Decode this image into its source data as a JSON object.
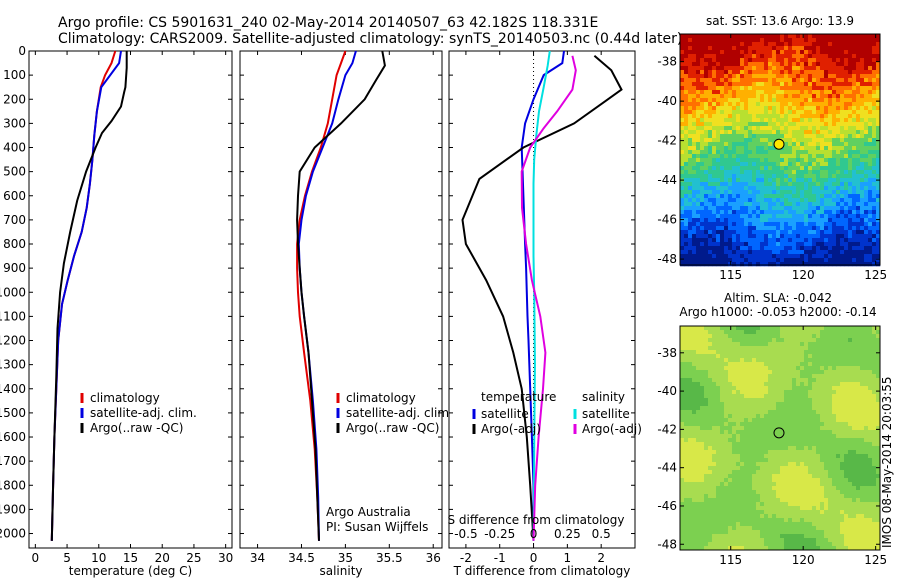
{
  "header": {
    "line1": "Argo profile: CS 5901631_240 02-May-2014 20140507_63 42.182S 118.331E",
    "line2": "Climatology: CARS2009. Satellite-adjusted climatology: synTS_20140503.nc (0.44d later)"
  },
  "colors": {
    "climatology": "#e00000",
    "satellite": "#0000e0",
    "argo": "#000000",
    "satellite_salinity": "#00e0e0",
    "argo_salinity_diff": "#e000e0"
  },
  "footer_note": {
    "line1": "Argo Australia",
    "line2": "PI: Susan Wijffels"
  },
  "timestamp": "IMOS 08-May-2014 20:03:55",
  "chart_data": [
    {
      "id": "temperature",
      "type": "line",
      "xlabel": "temperature (deg C)",
      "ylabel": "",
      "xlim": [
        -1,
        31
      ],
      "ylim": [
        2060,
        0
      ],
      "xticks": [
        0,
        5,
        10,
        15,
        20,
        25,
        30
      ],
      "xtick_labels": [
        "0",
        "5",
        "10",
        "15",
        "20",
        "25",
        "30"
      ],
      "yticks": [
        0,
        100,
        200,
        300,
        400,
        500,
        600,
        700,
        800,
        900,
        1000,
        1100,
        1200,
        1300,
        1400,
        1500,
        1600,
        1700,
        1800,
        1900,
        2000
      ],
      "ytick_labels": [
        "0",
        "100",
        "200",
        "300",
        "400",
        "500",
        "600",
        "700",
        "800",
        "900",
        "1000",
        "1100",
        "1200",
        "1300",
        "1400",
        "1500",
        "1600",
        "1700",
        "1800",
        "1900",
        "2000"
      ],
      "legend": [
        "climatology",
        "satellite-adj. clim.",
        "Argo(..raw -QC)"
      ],
      "legend_placement": "lower-center",
      "series": [
        {
          "name": "climatology",
          "color": "#e00000",
          "x": [
            12.6,
            12.0,
            11.0,
            10.3,
            9.7,
            9.3,
            9.0,
            8.6,
            8.1,
            7.3,
            6.1,
            5.1,
            4.2,
            3.6,
            3.3,
            3.0,
            2.8,
            2.6
          ],
          "y": [
            0,
            50,
            100,
            150,
            250,
            350,
            450,
            550,
            650,
            750,
            850,
            950,
            1050,
            1200,
            1400,
            1600,
            1800,
            2030
          ]
        },
        {
          "name": "satellite-adj. clim.",
          "color": "#0000e0",
          "x": [
            13.5,
            13.2,
            11.8,
            10.4,
            9.7,
            9.3,
            9.0,
            8.6,
            8.1,
            7.3,
            6.1,
            5.1,
            4.2,
            3.6,
            3.3,
            3.0,
            2.8,
            2.6
          ],
          "y": [
            0,
            50,
            100,
            150,
            250,
            350,
            450,
            550,
            650,
            750,
            850,
            950,
            1050,
            1200,
            1400,
            1600,
            1800,
            2030
          ]
        },
        {
          "name": "Argo(..raw -QC)",
          "color": "#000000",
          "x": [
            14.4,
            14.4,
            14.2,
            14.0,
            13.5,
            12.0,
            10.5,
            9.5,
            8.0,
            6.6,
            5.5,
            4.5,
            3.9,
            3.5,
            3.3,
            3.0,
            2.8,
            2.6
          ],
          "y": [
            0,
            70,
            150,
            170,
            230,
            290,
            340,
            400,
            500,
            620,
            750,
            880,
            1000,
            1150,
            1350,
            1600,
            1800,
            2030
          ]
        }
      ]
    },
    {
      "id": "salinity",
      "type": "line",
      "xlabel": "salinity",
      "xlim": [
        33.8,
        36.1
      ],
      "ylim": [
        2060,
        0
      ],
      "xticks": [
        34,
        34.5,
        35,
        35.5,
        36
      ],
      "xtick_labels": [
        "34",
        "34.5",
        "35",
        "35.5",
        "36"
      ],
      "legend": [
        "climatology",
        "satellite-adj. clim.",
        "Argo(..raw -QC)"
      ],
      "legend_placement": "lower-center",
      "series": [
        {
          "name": "climatology",
          "color": "#e00000",
          "x": [
            35.0,
            34.95,
            34.9,
            34.85,
            34.8,
            34.72,
            34.62,
            34.54,
            34.48,
            34.45,
            34.45,
            34.46,
            34.48,
            34.53,
            34.6,
            34.65,
            34.68,
            34.7
          ],
          "y": [
            0,
            50,
            100,
            200,
            300,
            400,
            500,
            600,
            700,
            800,
            900,
            1000,
            1100,
            1250,
            1450,
            1650,
            1850,
            2030
          ]
        },
        {
          "name": "satellite-adj. clim.",
          "color": "#0000e0",
          "x": [
            35.12,
            35.08,
            35.0,
            34.92,
            34.85,
            34.74,
            34.63,
            34.55,
            34.5,
            34.47,
            34.48,
            34.5,
            34.53,
            34.58,
            34.63,
            34.67,
            34.69,
            34.7
          ],
          "y": [
            0,
            50,
            100,
            200,
            300,
            400,
            500,
            600,
            700,
            800,
            900,
            1000,
            1100,
            1250,
            1450,
            1650,
            1850,
            2030
          ]
        },
        {
          "name": "Argo(..raw -QC)",
          "color": "#000000",
          "x": [
            35.42,
            35.45,
            35.35,
            35.22,
            34.95,
            34.65,
            34.48,
            34.46,
            34.45,
            34.46,
            34.48,
            34.5,
            34.53,
            34.58,
            34.62,
            34.66,
            34.68,
            34.7
          ],
          "y": [
            0,
            60,
            120,
            200,
            300,
            400,
            500,
            600,
            700,
            800,
            900,
            1000,
            1100,
            1250,
            1450,
            1650,
            1850,
            2030
          ]
        }
      ],
      "annotation": [
        "Argo Australia",
        "PI: Susan Wijffels"
      ]
    },
    {
      "id": "difference",
      "type": "line",
      "xlabel": "T difference from climatology",
      "top_label": "S difference from climatology",
      "xlim": [
        -2.5,
        3.0
      ],
      "ylim": [
        2060,
        0
      ],
      "xticks": [
        -2,
        -1,
        0,
        1,
        2
      ],
      "xtick_labels": [
        "-2",
        "-1",
        "0",
        "1",
        "2"
      ],
      "s_ticks": [
        -0.5,
        -0.25,
        0,
        0.25,
        0.5
      ],
      "s_tick_labels": [
        "-0.5",
        "-0.25",
        "0",
        "0.25",
        "0.5"
      ],
      "s_scale": 0.25,
      "legend_left_title": "temperature",
      "legend_right_title": "salinity",
      "legend_left": [
        "satellite",
        "Argo(-adj)"
      ],
      "legend_right": [
        "satellite",
        "Argo(-adj)"
      ],
      "series": [
        {
          "name": "temperature satellite",
          "color": "#0000e0",
          "x": [
            0.9,
            0.85,
            0.3,
            0.0,
            -0.25,
            -0.35,
            -0.3,
            -0.25,
            -0.22,
            -0.2,
            -0.18,
            -0.15,
            -0.1,
            -0.05,
            0,
            0
          ],
          "y": [
            0,
            50,
            100,
            200,
            300,
            400,
            600,
            800,
            900,
            1000,
            1100,
            1200,
            1400,
            1600,
            1800,
            2030
          ]
        },
        {
          "name": "temperature Argo(-adj)",
          "color": "#000000",
          "x": [
            1.8,
            2.3,
            2.6,
            2.1,
            1.2,
            -0.3,
            -1.6,
            -2.1,
            -2.0,
            -1.4,
            -0.9,
            -0.6,
            -0.35,
            -0.2,
            -0.1,
            0
          ],
          "y": [
            20,
            80,
            160,
            210,
            300,
            400,
            530,
            700,
            800,
            950,
            1100,
            1250,
            1400,
            1600,
            1800,
            2030
          ]
        },
        {
          "name": "salinity satellite",
          "color": "#00e0e0",
          "x": [
            0.48,
            0.42,
            0.3,
            0.16,
            0.08,
            0.02,
            0.0,
            0.0,
            0.0,
            0.02,
            0.03,
            0.04,
            0.03,
            0.02,
            0.01,
            0.0
          ],
          "y": [
            0,
            60,
            150,
            250,
            350,
            450,
            550,
            700,
            850,
            1000,
            1150,
            1300,
            1450,
            1650,
            1850,
            2030
          ]
        },
        {
          "name": "salinity Argo(-adj)",
          "color": "#e000e0",
          "x": [
            1.15,
            1.25,
            1.15,
            0.7,
            0.3,
            -0.1,
            -0.35,
            -0.34,
            -0.22,
            -0.05,
            0.2,
            0.35,
            0.28,
            0.15,
            0.05,
            0.0
          ],
          "y": [
            20,
            80,
            160,
            250,
            320,
            400,
            500,
            650,
            800,
            950,
            1100,
            1250,
            1400,
            1600,
            1800,
            2030
          ]
        }
      ]
    },
    {
      "id": "sst-map",
      "type": "heatmap",
      "title": "sat. SST: 13.6  Argo: 13.9",
      "xlim": [
        111.5,
        125.3
      ],
      "ylim": [
        -48.3,
        -36.6
      ],
      "xticks": [
        115,
        120,
        125
      ],
      "xtick_labels": [
        "115",
        "120",
        "125"
      ],
      "yticks": [
        -38,
        -40,
        -42,
        -44,
        -46,
        -48
      ],
      "ytick_labels": [
        "-38",
        "-40",
        "-42",
        "-44",
        "-46",
        "-48"
      ],
      "marker": {
        "lon": 118.331,
        "lat": -42.182,
        "fill": "#ffe600"
      },
      "colors": [
        "#001a8c",
        "#0033cc",
        "#0066ff",
        "#1aa0ff",
        "#22c0d0",
        "#30c890",
        "#60d060",
        "#b8e030",
        "#f0e020",
        "#ffb000",
        "#ff7000",
        "#e02000",
        "#b00000"
      ]
    },
    {
      "id": "sla-map",
      "type": "heatmap",
      "title": "Altim. SLA: -0.042",
      "subtitle": "Argo h1000: -0.053 h2000: -0.14",
      "xlim": [
        111.5,
        125.3
      ],
      "ylim": [
        -48.3,
        -36.6
      ],
      "xticks": [
        115,
        120,
        125
      ],
      "xtick_labels": [
        "115",
        "120",
        "125"
      ],
      "yticks": [
        -38,
        -40,
        -42,
        -44,
        -46,
        -48
      ],
      "ytick_labels": [
        "-38",
        "-40",
        "-42",
        "-44",
        "-46",
        "-48"
      ],
      "marker": {
        "lon": 118.331,
        "lat": -42.182,
        "fill": "none"
      },
      "colors": [
        "#3a9a3a",
        "#58b848",
        "#7cd050",
        "#a8dc50",
        "#d8e848",
        "#f4e040",
        "#e8b030"
      ]
    }
  ]
}
